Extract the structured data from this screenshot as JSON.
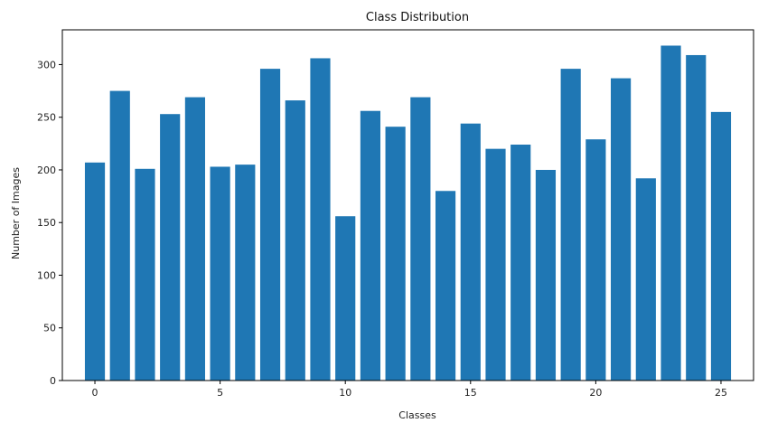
{
  "chart_data": {
    "type": "bar",
    "title": "Class Distribution",
    "xlabel": "Classes",
    "ylabel": "Number of Images",
    "x": [
      0,
      1,
      2,
      3,
      4,
      5,
      6,
      7,
      8,
      9,
      10,
      11,
      12,
      13,
      14,
      15,
      16,
      17,
      18,
      19,
      20,
      21,
      22,
      23,
      24,
      25
    ],
    "values": [
      207,
      275,
      201,
      253,
      269,
      203,
      205,
      296,
      266,
      306,
      156,
      256,
      241,
      269,
      180,
      244,
      220,
      224,
      200,
      296,
      229,
      287,
      192,
      318,
      309,
      255
    ],
    "xlim": [
      -1.3,
      26.3
    ],
    "ylim": [
      0,
      333
    ],
    "xticks": [
      0,
      5,
      10,
      15,
      20,
      25
    ],
    "yticks": [
      0,
      50,
      100,
      150,
      200,
      250,
      300
    ],
    "bar_color": "#1f77b4",
    "grid": false,
    "legend": "none"
  }
}
